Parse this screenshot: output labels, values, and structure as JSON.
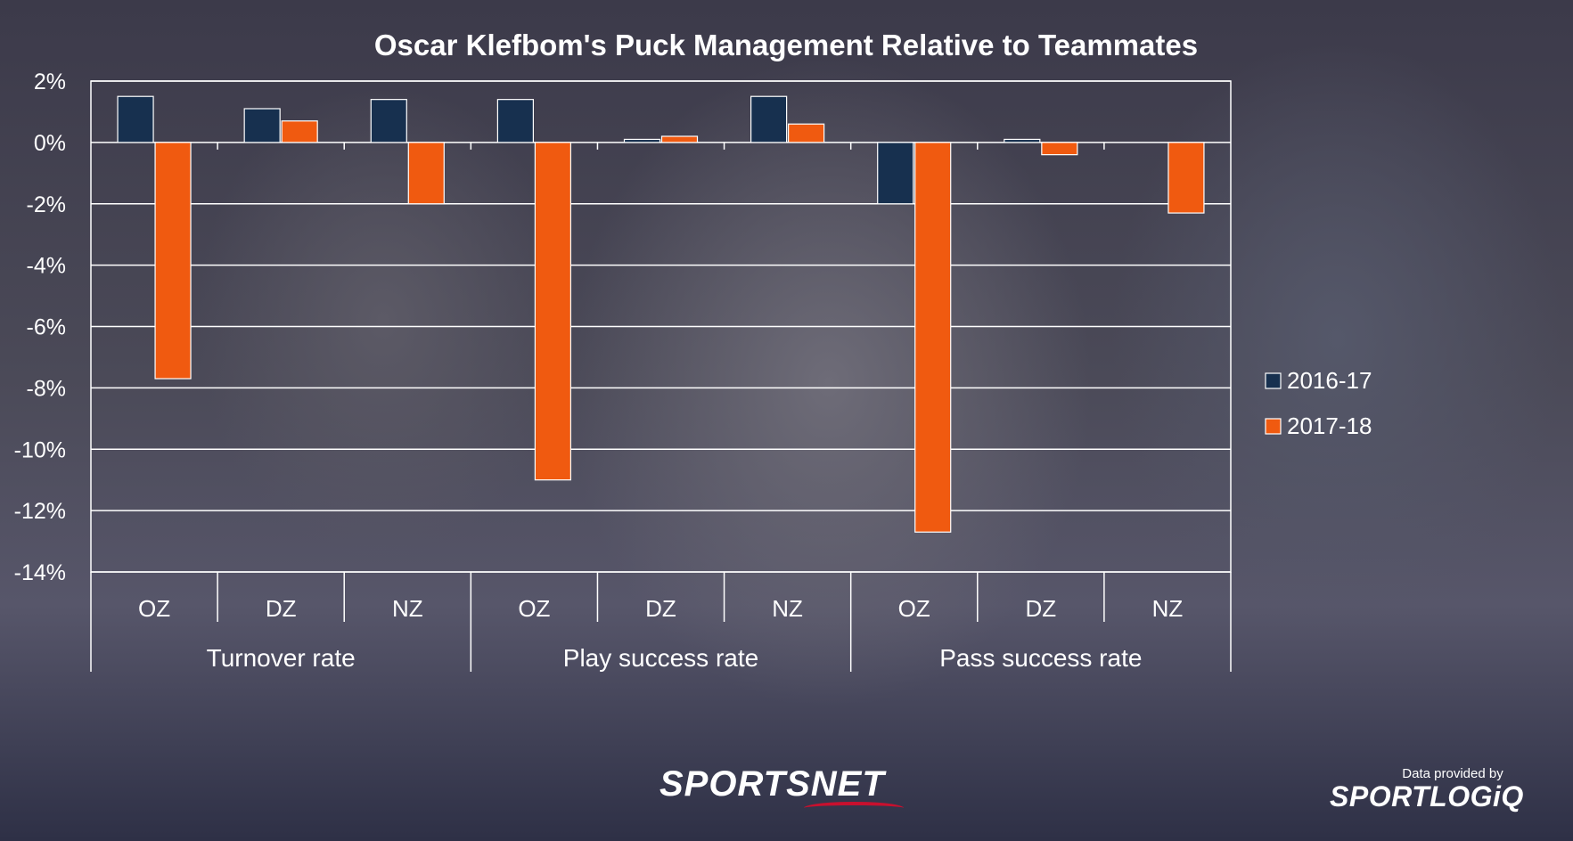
{
  "chart_data": {
    "type": "bar",
    "title": "Oscar Klefbom's Puck Management Relative to Teammates",
    "groups": [
      {
        "label": "Turnover rate",
        "categories": [
          "OZ",
          "DZ",
          "NZ"
        ]
      },
      {
        "label": "Play success rate",
        "categories": [
          "OZ",
          "DZ",
          "NZ"
        ]
      },
      {
        "label": "Pass success rate",
        "categories": [
          "OZ",
          "DZ",
          "NZ"
        ]
      }
    ],
    "series": [
      {
        "name": "2016-17",
        "color": "#17304f",
        "values": [
          1.5,
          1.1,
          1.4,
          1.4,
          0.1,
          1.5,
          -2.0,
          0.1,
          0.0
        ]
      },
      {
        "name": "2017-18",
        "color": "#f05a10",
        "values": [
          -7.7,
          0.7,
          -2.0,
          -11.0,
          0.2,
          0.6,
          -12.7,
          -0.4,
          -2.3
        ]
      }
    ],
    "ylim": [
      -14,
      2
    ],
    "yticks": [
      2,
      0,
      -2,
      -4,
      -6,
      -8,
      -10,
      -12,
      -14
    ],
    "ytick_labels": [
      "2%",
      "0%",
      "-2%",
      "-4%",
      "-6%",
      "-8%",
      "-10%",
      "-12%",
      "-14%"
    ],
    "grid": true,
    "legend_position": "right"
  },
  "credits": {
    "sportsnet_sports": "SPORTS",
    "sportsnet_net": "NET",
    "provided_by": "Data provided by",
    "sportlogiq": "SPORTLOGiQ"
  }
}
